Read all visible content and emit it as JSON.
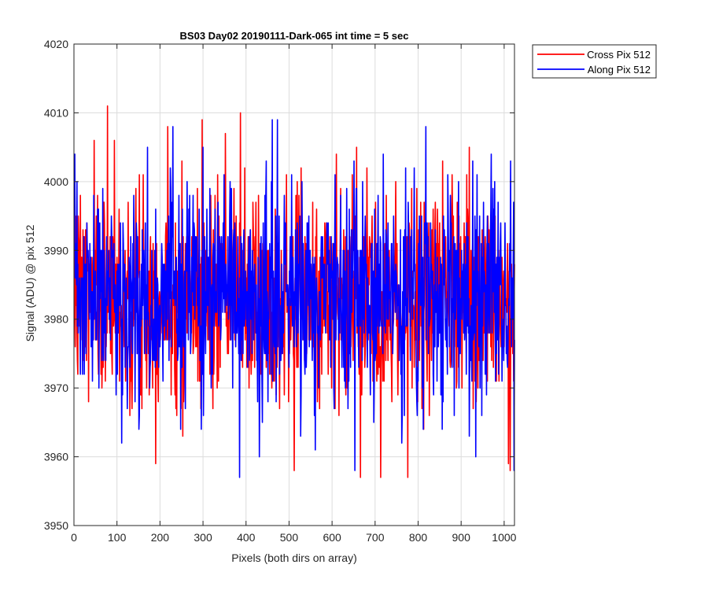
{
  "chart_data": {
    "type": "line",
    "title": "BS03 Day02 20190111-Dark-065 int time = 5 sec",
    "xlabel": "Pixels (both dirs on array)",
    "ylabel": "Signal (ADU) @ pix 512",
    "xlim": [
      0,
      1024
    ],
    "ylim": [
      3950,
      4020
    ],
    "xticks": [
      0,
      100,
      200,
      300,
      400,
      500,
      600,
      700,
      800,
      900,
      1000
    ],
    "yticks": [
      3950,
      3960,
      3970,
      3980,
      3990,
      4000,
      4010,
      4020
    ],
    "grid": true,
    "legend_position": "outside-top-right",
    "series": [
      {
        "name": "Cross Pix 512",
        "color": "#ff0000",
        "seed": 7,
        "mean": 3983,
        "noise_sd": 7.5,
        "min": 3957,
        "max": 4011,
        "n_points": 1024,
        "peaks": [
          [
            3,
            3995
          ],
          [
            77,
            4011
          ],
          [
            93,
            4006
          ],
          [
            160,
            4001
          ],
          [
            250,
            4003
          ],
          [
            297,
            4009
          ],
          [
            386,
            4010
          ],
          [
            511,
            3958
          ],
          [
            665,
            3957
          ],
          [
            775,
            3957
          ],
          [
            1013,
            3958
          ],
          [
            1022,
            3981
          ]
        ]
      },
      {
        "name": "Along Pix 512",
        "color": "#0000ff",
        "seed": 23,
        "mean": 3983,
        "noise_sd": 7.5,
        "min": 3957,
        "max": 4009,
        "n_points": 1024,
        "peaks": [
          [
            1,
            4004
          ],
          [
            110,
            3962
          ],
          [
            170,
            4005
          ],
          [
            299,
            4005
          ],
          [
            384,
            3957
          ],
          [
            430,
            3960
          ],
          [
            472,
            4009
          ],
          [
            652,
            3958
          ],
          [
            933,
            3960
          ],
          [
            1014,
            4003
          ],
          [
            1022,
            3958
          ]
        ]
      }
    ]
  }
}
